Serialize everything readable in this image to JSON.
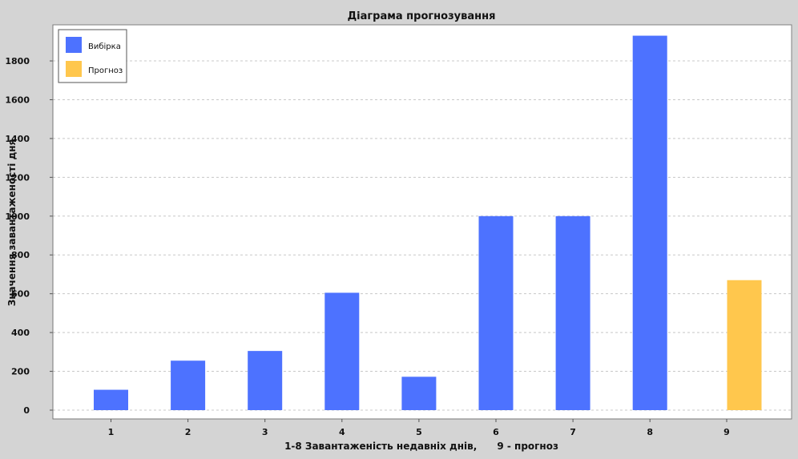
{
  "chart_data": {
    "type": "bar",
    "title": "Діаграма прогнозування",
    "xlabel": "1-8 Завантаженість недавніх днів,      9 - прогноз",
    "ylabel": "Значення завантаженості дня",
    "categories": [
      "1",
      "2",
      "3",
      "4",
      "5",
      "6",
      "7",
      "8",
      "9"
    ],
    "series": [
      {
        "name": "Вибірка",
        "color": "#4d72ff",
        "values": [
          105,
          255,
          305,
          605,
          172,
          1000,
          1000,
          1930,
          null
        ]
      },
      {
        "name": "Прогноз",
        "color": "#ffc74d",
        "values": [
          null,
          null,
          null,
          null,
          null,
          null,
          null,
          null,
          670
        ]
      }
    ],
    "ylim": [
      0,
      1950
    ],
    "yticks": [
      0,
      200,
      400,
      600,
      800,
      1000,
      1200,
      1400,
      1600,
      1800
    ],
    "grid": true,
    "legend_position": "top-left"
  }
}
